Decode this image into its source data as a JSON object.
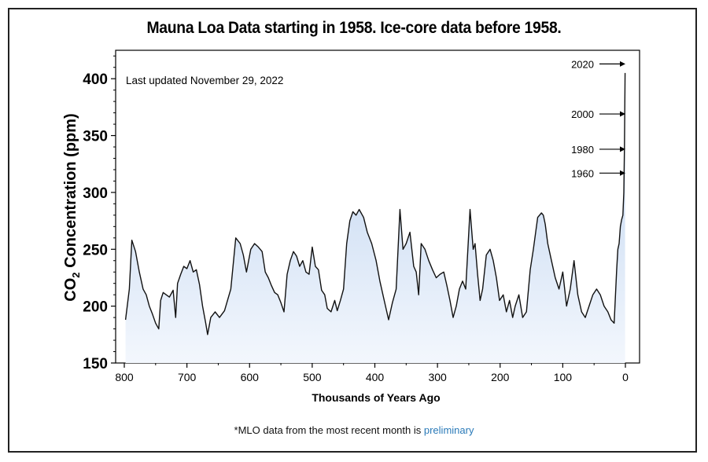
{
  "chart_data": {
    "type": "area",
    "title": "Mauna Loa Data starting in 1958. Ice-core data before 1958.",
    "annotation": "Last updated November 29, 2022",
    "ylabel_main": "CO",
    "ylabel_sub": "2",
    "ylabel_rest": " Concentration (ppm)",
    "xlabel": "Thousands of Years Ago",
    "xlim": [
      800,
      0
    ],
    "ylim": [
      150,
      425
    ],
    "x_ticks": [
      800,
      700,
      600,
      500,
      400,
      300,
      200,
      100,
      0
    ],
    "x_tick_labels": [
      "800",
      "700",
      "600",
      "500",
      "400",
      "300",
      "200",
      "100",
      "0"
    ],
    "y_ticks": [
      150,
      200,
      250,
      300,
      350,
      400
    ],
    "y_tick_labels": [
      "150",
      "200",
      "250",
      "300",
      "350",
      "400"
    ],
    "series": [
      {
        "x": [
          798,
          792,
          788,
          782,
          776,
          770,
          765,
          760,
          755,
          750,
          745,
          742,
          738,
          733,
          728,
          722,
          718,
          715,
          710,
          705,
          700,
          695,
          690,
          685,
          680,
          675,
          670,
          667,
          662,
          655,
          648,
          640,
          630,
          622,
          615,
          610,
          605,
          598,
          592,
          586,
          580,
          575,
          570,
          565,
          560,
          555,
          550,
          545,
          540,
          535,
          530,
          525,
          520,
          515,
          510,
          505,
          500,
          495,
          490,
          485,
          480,
          476,
          470,
          464,
          460,
          455,
          450,
          445,
          440,
          435,
          430,
          425,
          418,
          412,
          405,
          398,
          392,
          385,
          378,
          372,
          366,
          360,
          355,
          350,
          344,
          338,
          334,
          330,
          326,
          320,
          314,
          308,
          302,
          296,
          290,
          285,
          280,
          275,
          270,
          265,
          260,
          255,
          248,
          243,
          240,
          236,
          232,
          228,
          222,
          216,
          211,
          206,
          201,
          195,
          190,
          185,
          180,
          176,
          170,
          164,
          158,
          152,
          147,
          140,
          134,
          131,
          128,
          124,
          118,
          112,
          106,
          100,
          94,
          88,
          82,
          76,
          70,
          64,
          58,
          52,
          46,
          40,
          34,
          28,
          23,
          18,
          14,
          12,
          10,
          8,
          6,
          4,
          2.5,
          1.5,
          0.5
        ],
        "y": [
          188,
          215,
          258,
          248,
          230,
          215,
          210,
          200,
          193,
          185,
          180,
          205,
          212,
          210,
          208,
          214,
          190,
          220,
          228,
          235,
          233,
          240,
          230,
          232,
          219,
          200,
          185,
          175,
          190,
          195,
          190,
          196,
          215,
          260,
          255,
          245,
          230,
          250,
          255,
          252,
          248,
          230,
          225,
          218,
          212,
          210,
          203,
          195,
          228,
          240,
          248,
          244,
          235,
          240,
          230,
          228,
          252,
          235,
          232,
          214,
          210,
          198,
          195,
          205,
          196,
          205,
          215,
          255,
          275,
          283,
          280,
          285,
          278,
          265,
          255,
          240,
          222,
          205,
          188,
          203,
          215,
          285,
          250,
          255,
          265,
          235,
          230,
          210,
          255,
          250,
          240,
          232,
          225,
          228,
          230,
          218,
          205,
          190,
          200,
          215,
          222,
          215,
          285,
          250,
          255,
          228,
          205,
          215,
          245,
          250,
          240,
          225,
          205,
          210,
          195,
          205,
          190,
          200,
          210,
          190,
          195,
          232,
          250,
          278,
          282,
          280,
          272,
          255,
          240,
          225,
          215,
          230,
          200,
          215,
          240,
          210,
          195,
          190,
          200,
          210,
          215,
          210,
          200,
          195,
          188,
          185,
          232,
          250,
          255,
          270,
          276,
          280,
          300,
          340,
          405
        ],
        "line_color": "#111111",
        "fill_top": "#b9d0ee",
        "fill_bottom": "#f3f7fd"
      }
    ],
    "year_markers": [
      {
        "label": "2020",
        "ppm": 413
      },
      {
        "label": "2000",
        "ppm": 369
      },
      {
        "label": "1980",
        "ppm": 338
      },
      {
        "label": "1960",
        "ppm": 317
      }
    ]
  },
  "footnote": {
    "prefix": "*MLO data from the most recent month is ",
    "link": "preliminary"
  }
}
